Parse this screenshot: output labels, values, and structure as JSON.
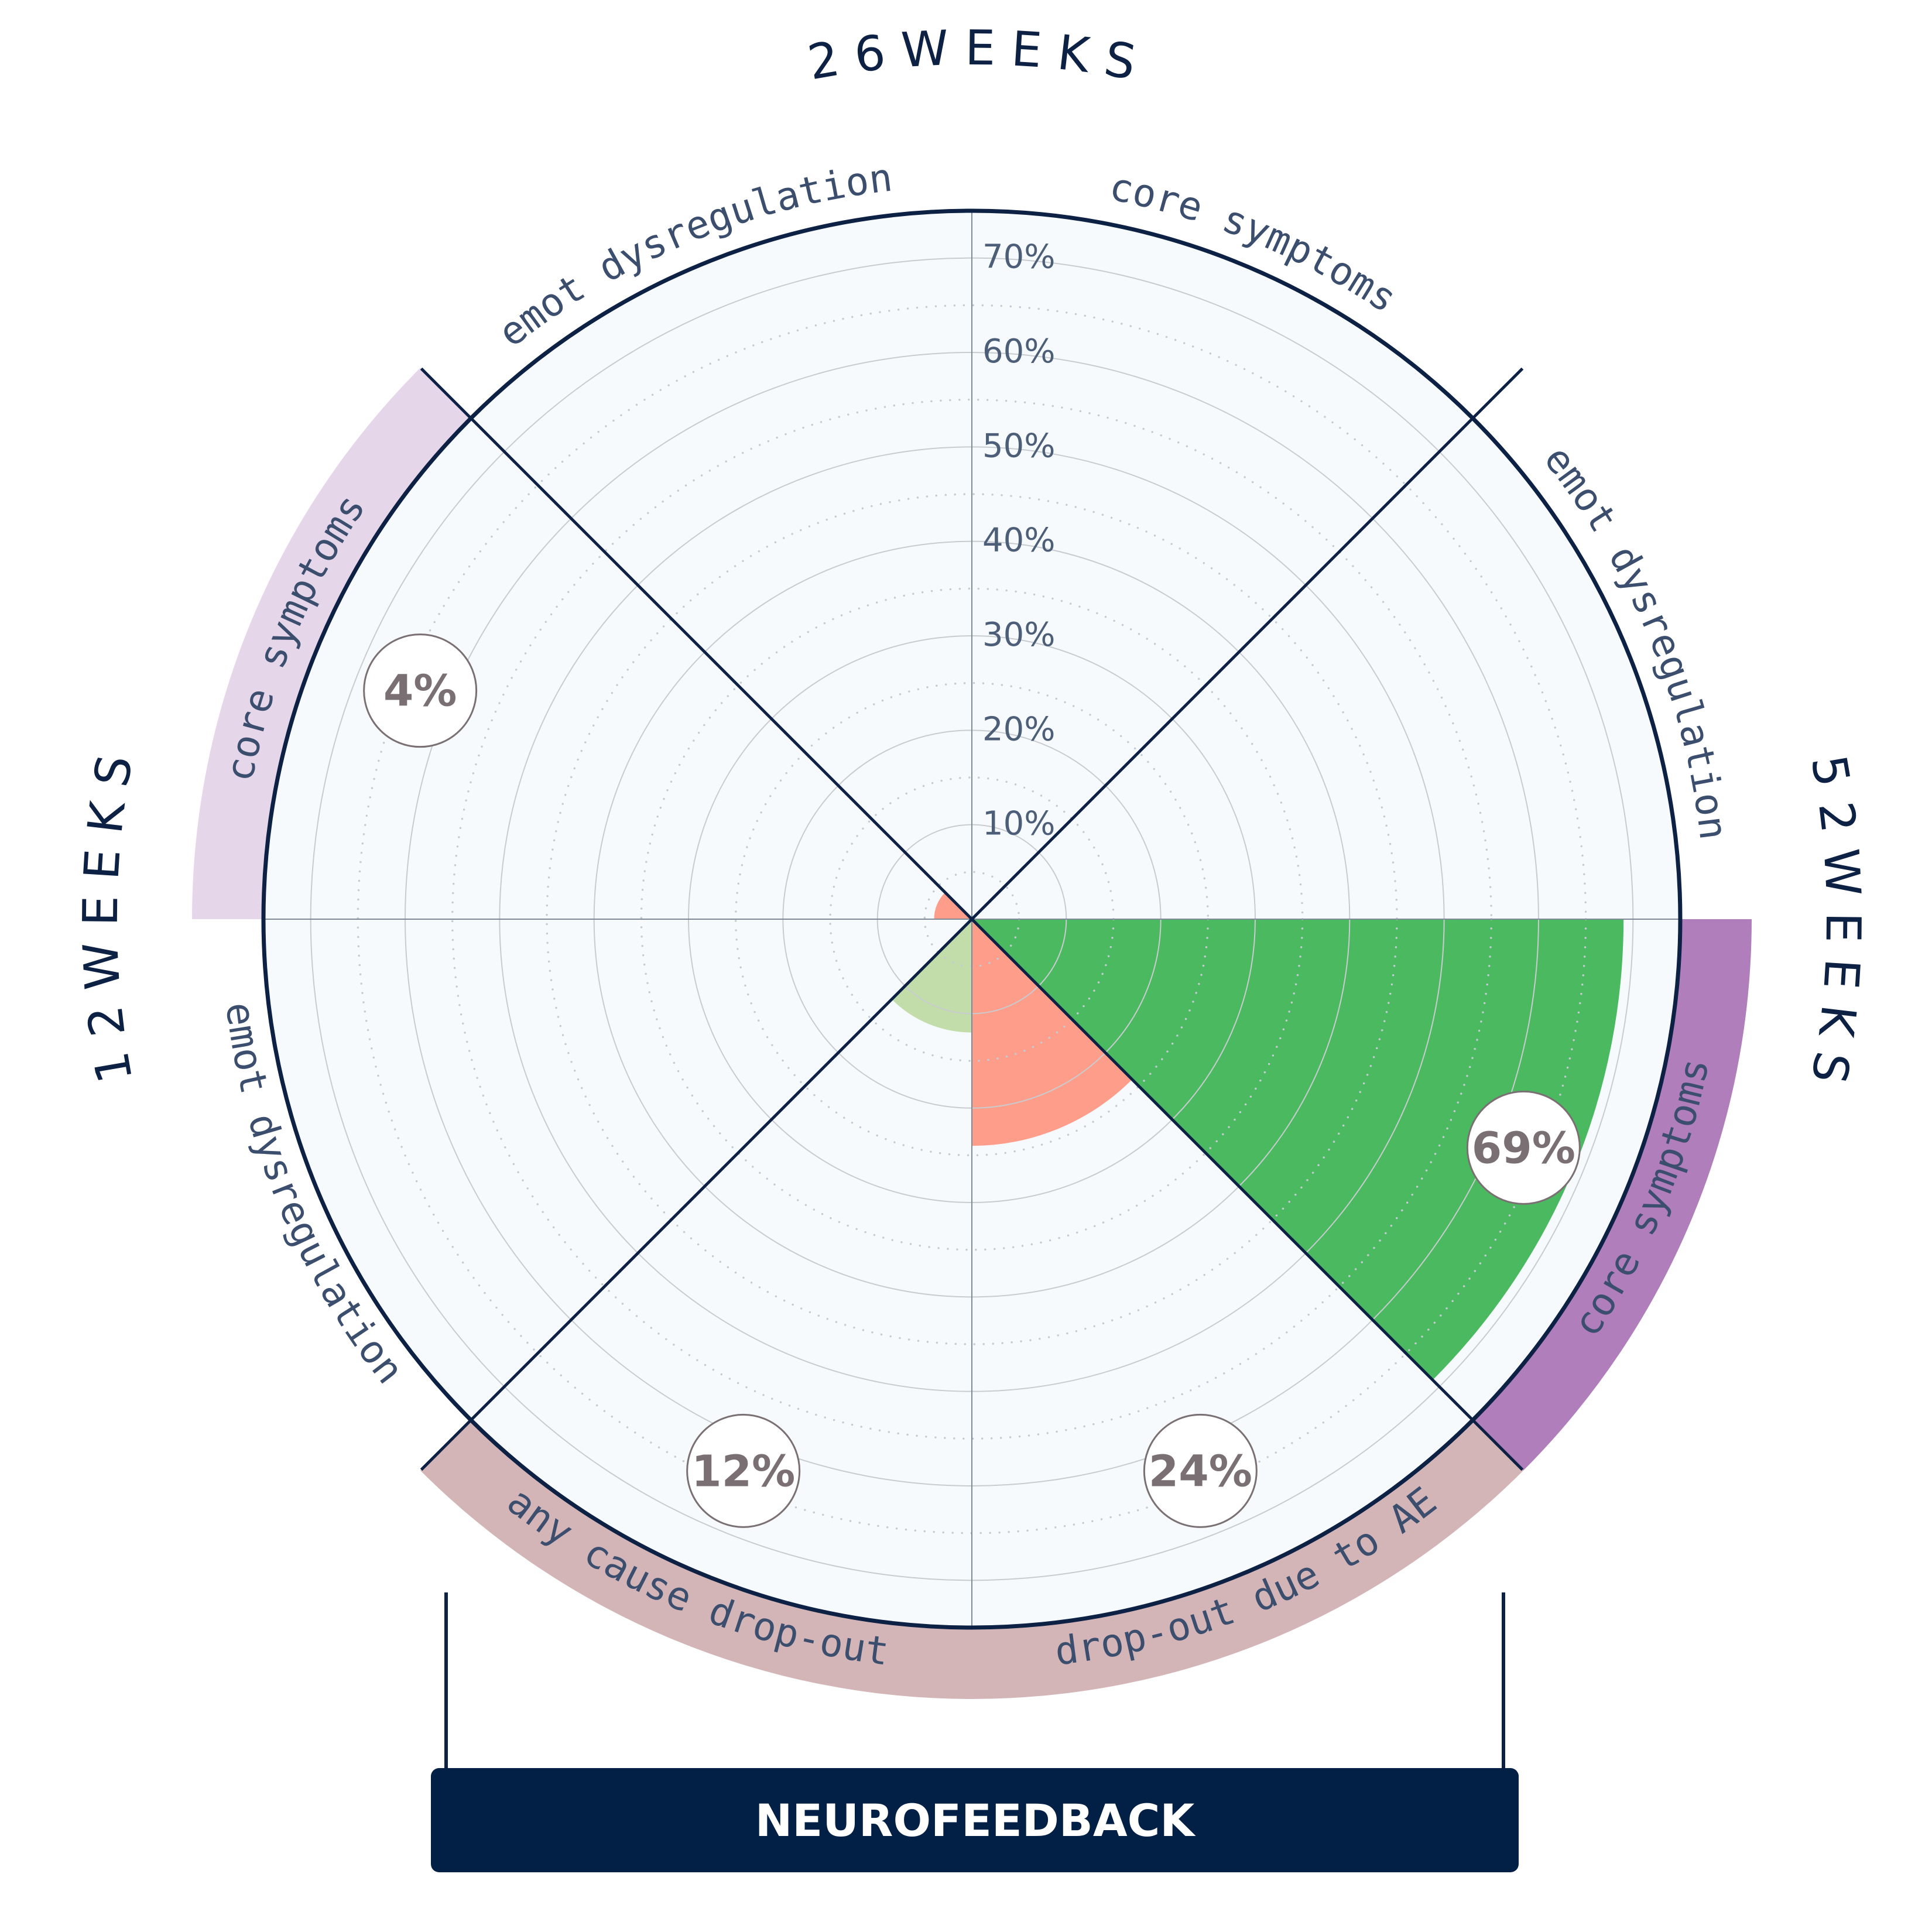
{
  "chart_data": {
    "type": "polar-bar",
    "title": "",
    "radial_axis": {
      "ticks": [
        "10%",
        "20%",
        "30%",
        "40%",
        "50%",
        "60%",
        "70%"
      ],
      "range": [
        0,
        75
      ]
    },
    "time_points": [
      {
        "label": "12 WEEKS",
        "color": "#e6d6ea"
      },
      {
        "label": "26 WEEKS",
        "color": ""
      },
      {
        "label": "52 WEEKS",
        "color": "#b07ebb"
      }
    ],
    "drop_out_band": {
      "color": "#d3b5b7"
    },
    "sectors": [
      {
        "label": "core symptoms",
        "time_point": "52 WEEKS",
        "value": 69,
        "value_label": "69%",
        "fill": "#4bb95f"
      },
      {
        "label": "drop-out due to AE",
        "time_point": "",
        "value": 24,
        "value_label": "24%",
        "fill": "#fe9e8a"
      },
      {
        "label": "any cause drop-out",
        "time_point": "",
        "value": 12,
        "value_label": "12%",
        "fill": "#c2dcaa"
      },
      {
        "label": "emot dysregulation",
        "time_point": "12 WEEKS",
        "value": null,
        "value_label": "",
        "fill": ""
      },
      {
        "label": "core symptoms",
        "time_point": "12 WEEKS",
        "value": 4,
        "value_label": "4%",
        "fill": "#fe9e8a"
      },
      {
        "label": "emot dysregulation",
        "time_point": "26 WEEKS",
        "value": null,
        "value_label": "",
        "fill": ""
      },
      {
        "label": "core symptoms",
        "time_point": "26 WEEKS",
        "value": null,
        "value_label": "",
        "fill": ""
      },
      {
        "label": "emot dysregulation",
        "time_point": "52 WEEKS",
        "value": null,
        "value_label": "",
        "fill": ""
      }
    ],
    "treatment_label": "NEUROFEEDBACK",
    "colors": {
      "background": "#f6fafd",
      "outline": "#0d2145",
      "grid": "#c8ccd0",
      "tick_text": "#4d5e78",
      "value_text": "#7a7073",
      "banner": "#022045"
    }
  }
}
